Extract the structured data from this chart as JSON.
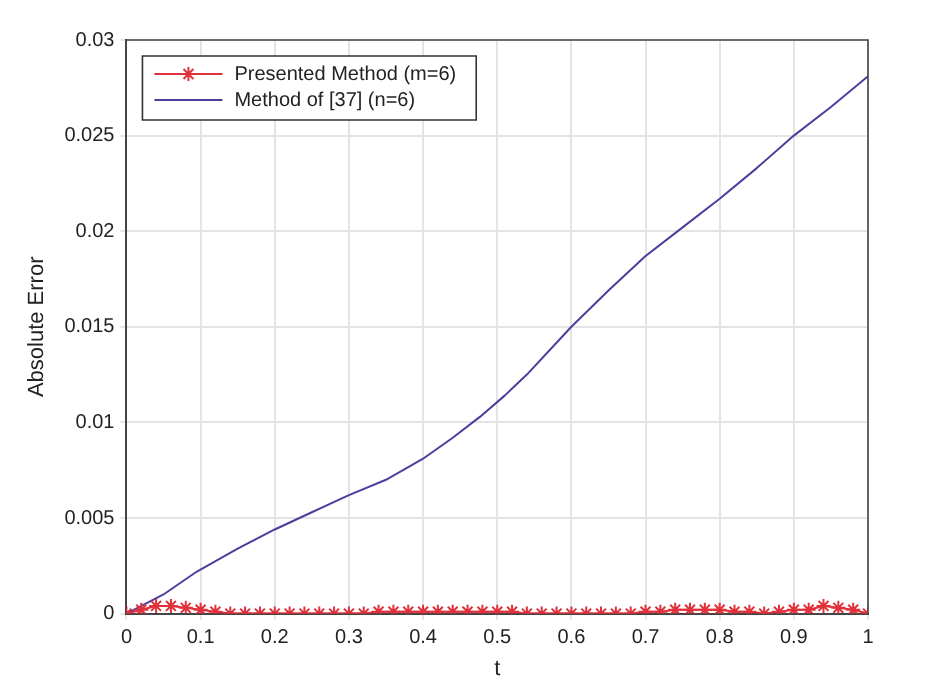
{
  "chart_data": {
    "type": "line",
    "xlabel": "t",
    "ylabel": "Absolute Error",
    "xlim": [
      0,
      1
    ],
    "xticks": [
      0,
      0.1,
      0.2,
      0.3,
      0.4,
      0.5,
      0.6,
      0.7,
      0.8,
      0.9,
      1
    ],
    "ylim": [
      0,
      0.03
    ],
    "yticks": [
      0,
      0.005,
      0.01,
      0.015,
      0.02,
      0.025,
      0.03
    ],
    "grid": true,
    "legend": "top left",
    "series": [
      {
        "name": "Presented Method (m=6)",
        "color": "#e0303a",
        "marker": "cross",
        "x": [
          0,
          0.02,
          0.04,
          0.06,
          0.08,
          0.1,
          0.12,
          0.14,
          0.16,
          0.18,
          0.2,
          0.22,
          0.24,
          0.26,
          0.28,
          0.3,
          0.32,
          0.34,
          0.36,
          0.38,
          0.4,
          0.42,
          0.44,
          0.46,
          0.48,
          0.5,
          0.52,
          0.54,
          0.56,
          0.58,
          0.6,
          0.62,
          0.64,
          0.66,
          0.68,
          0.7,
          0.72,
          0.74,
          0.76,
          0.78,
          0.8,
          0.82,
          0.84,
          0.86,
          0.88,
          0.9,
          0.92,
          0.94,
          0.96,
          0.98,
          1
        ],
        "values": [
          0,
          0.0002,
          0.0004,
          0.0004,
          0.0003,
          0.0002,
          0.0001,
          0,
          0,
          0,
          0,
          0,
          0,
          0,
          0,
          0,
          0,
          0.0001,
          0.0001,
          0.0001,
          0.0001,
          0.0001,
          0.0001,
          0.0001,
          0.0001,
          0.0001,
          0.0001,
          0,
          0,
          0,
          0,
          0,
          0,
          0,
          0,
          0.0001,
          0.0001,
          0.0002,
          0.0002,
          0.0002,
          0.0002,
          0.0001,
          0.0001,
          0,
          0.0001,
          0.0002,
          0.0002,
          0.0004,
          0.0003,
          0.0002,
          0
        ]
      },
      {
        "name": "Method of [37] (n=6)",
        "color": "#4b3f9e",
        "marker": "none",
        "x": [
          0,
          0.05,
          0.095,
          0.15,
          0.2,
          0.25,
          0.3,
          0.35,
          0.4,
          0.44,
          0.477,
          0.51,
          0.54,
          0.6,
          0.65,
          0.7,
          0.75,
          0.8,
          0.85,
          0.9,
          0.95,
          1
        ],
        "values": [
          0,
          0.001,
          0.0022,
          0.0034,
          0.0044,
          0.0053,
          0.0062,
          0.007,
          0.0081,
          0.0092,
          0.0103,
          0.0114,
          0.0125,
          0.015,
          0.0169,
          0.0187,
          0.0202,
          0.0217,
          0.0233,
          0.025,
          0.0265,
          0.0281
        ]
      }
    ]
  }
}
